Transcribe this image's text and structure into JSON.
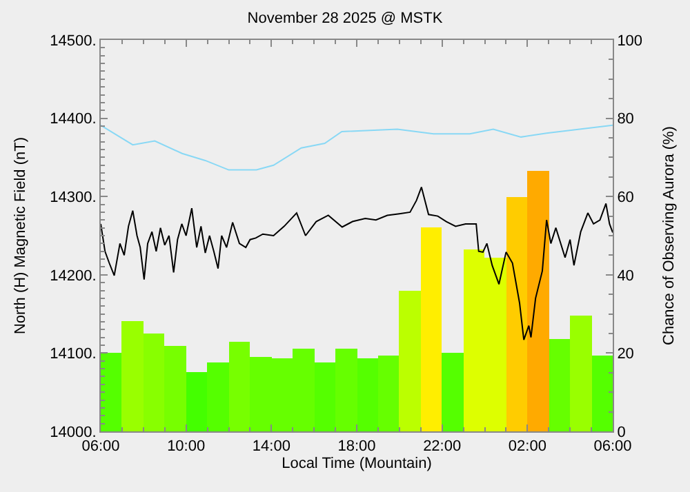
{
  "chart_data": {
    "type": "line",
    "title": "November 28 2025 @ MSTK",
    "xlabel": "Local Time (Mountain)",
    "ylabel": "North (H) Magnetic Field (nT)",
    "y2label": "Chance of Observing Aurora (%)",
    "xlim": [
      "2025-11-28T06:00",
      "2025-11-29T06:00"
    ],
    "xticks": [
      {
        "value": "2025-11-28T06:00",
        "label": "06:00"
      },
      {
        "value": "2025-11-28T10:00",
        "label": "10:00"
      },
      {
        "value": "2025-11-28T14:00",
        "label": "14:00"
      },
      {
        "value": "2025-11-28T18:00",
        "label": "18:00"
      },
      {
        "value": "2025-11-28T22:00",
        "label": "22:00"
      },
      {
        "value": "2025-11-29T02:00",
        "label": "02:00"
      },
      {
        "value": "2025-11-29T06:00",
        "label": "06:00"
      }
    ],
    "ylim": [
      14000,
      14500
    ],
    "yticks": [
      {
        "value": 14000,
        "label": "14000."
      },
      {
        "value": 14100,
        "label": "14100."
      },
      {
        "value": 14200,
        "label": "14200."
      },
      {
        "value": 14300,
        "label": "14300."
      },
      {
        "value": 14400,
        "label": "14400."
      },
      {
        "value": 14500,
        "label": "14500."
      }
    ],
    "y2lim": [
      0,
      100
    ],
    "y2ticks": [
      0,
      20,
      40,
      60,
      80,
      100
    ],
    "grid": false,
    "series": [
      {
        "type": "bar",
        "axis": "y2",
        "x": [
          "2025-11-28T06:30",
          "2025-11-28T07:30",
          "2025-11-28T08:30",
          "2025-11-28T09:30",
          "2025-11-28T10:30",
          "2025-11-28T11:30",
          "2025-11-28T12:30",
          "2025-11-28T13:30",
          "2025-11-28T14:30",
          "2025-11-28T15:30",
          "2025-11-28T16:30",
          "2025-11-28T17:30",
          "2025-11-28T18:30",
          "2025-11-28T19:30",
          "2025-11-28T20:30",
          "2025-11-28T21:30",
          "2025-11-28T22:30",
          "2025-11-28T23:30",
          "2025-11-29T00:30",
          "2025-11-29T01:30",
          "2025-11-29T02:30",
          "2025-11-29T03:30",
          "2025-11-29T04:30",
          "2025-11-29T05:30"
        ],
        "values": [
          20,
          28,
          25,
          22,
          15,
          17.5,
          23,
          19,
          18.5,
          21,
          17.5,
          21,
          18.5,
          19.5,
          36,
          52,
          20,
          46.5,
          44.5,
          60,
          66.5,
          23.5,
          29.5,
          19.5
        ],
        "colors": [
          "#55ff00",
          "#99ff00",
          "#88ff00",
          "#77ff00",
          "#44ff00",
          "#55ff00",
          "#77ff00",
          "#66ff00",
          "#66ff00",
          "#66ff00",
          "#55ff00",
          "#66ff00",
          "#55ff00",
          "#66ff00",
          "#bbff00",
          "#ffee00",
          "#55ff00",
          "#ddff00",
          "#ddff00",
          "#ffcc00",
          "#ffaa00",
          "#66ff00",
          "#99ff00",
          "#55ff00"
        ]
      },
      {
        "axis": "y",
        "color": "#88d8f5",
        "x": [
          "2025-11-28T06:00",
          "2025-11-28T07:30",
          "2025-11-28T08:32",
          "2025-11-28T09:49",
          "2025-11-28T10:54",
          "2025-11-28T12:00",
          "2025-11-28T13:18",
          "2025-11-28T14:06",
          "2025-11-28T15:24",
          "2025-11-28T16:30",
          "2025-11-28T17:18",
          "2025-11-28T19:54",
          "2025-11-28T21:36",
          "2025-11-28T23:18",
          "2025-11-29T00:24",
          "2025-11-29T01:42",
          "2025-11-29T02:54",
          "2025-11-29T06:00"
        ],
        "values": [
          14391,
          14366,
          14371,
          14355,
          14346,
          14334,
          14334,
          14340,
          14362,
          14368,
          14383,
          14386,
          14380,
          14380,
          14386,
          14376,
          14381,
          14391
        ]
      },
      {
        "axis": "y",
        "color": "#000000",
        "x": [
          "2025-11-28T06:00",
          "2025-11-28T06:12",
          "2025-11-28T06:24",
          "2025-11-28T06:38",
          "2025-11-28T06:54",
          "2025-11-28T07:06",
          "2025-11-28T07:18",
          "2025-11-28T07:30",
          "2025-11-28T07:42",
          "2025-11-28T07:51",
          "2025-11-28T08:02",
          "2025-11-28T08:12",
          "2025-11-28T08:24",
          "2025-11-28T08:36",
          "2025-11-28T08:48",
          "2025-11-28T09:00",
          "2025-11-28T09:12",
          "2025-11-28T09:25",
          "2025-11-28T09:36",
          "2025-11-28T09:48",
          "2025-11-28T10:00",
          "2025-11-28T10:16",
          "2025-11-28T10:30",
          "2025-11-28T10:42",
          "2025-11-28T10:54",
          "2025-11-28T11:06",
          "2025-11-28T11:18",
          "2025-11-28T11:30",
          "2025-11-28T11:40",
          "2025-11-28T11:54",
          "2025-11-28T12:11",
          "2025-11-28T12:30",
          "2025-11-28T12:48",
          "2025-11-28T13:00",
          "2025-11-28T13:16",
          "2025-11-28T13:36",
          "2025-11-28T14:06",
          "2025-11-28T14:36",
          "2025-11-28T15:11",
          "2025-11-28T15:36",
          "2025-11-28T16:06",
          "2025-11-28T16:40",
          "2025-11-28T17:19",
          "2025-11-28T17:48",
          "2025-11-28T18:24",
          "2025-11-28T18:54",
          "2025-11-28T19:26",
          "2025-11-28T20:00",
          "2025-11-28T20:30",
          "2025-11-28T20:48",
          "2025-11-28T21:02",
          "2025-11-28T21:22",
          "2025-11-28T21:48",
          "2025-11-28T22:12",
          "2025-11-28T22:38",
          "2025-11-28T23:06",
          "2025-11-28T23:36",
          "2025-11-28T23:43",
          "2025-11-28T23:55",
          "2025-11-29T00:06",
          "2025-11-29T00:21",
          "2025-11-29T00:40",
          "2025-11-29T01:00",
          "2025-11-29T01:18",
          "2025-11-29T01:38",
          "2025-11-29T01:50",
          "2025-11-29T02:04",
          "2025-11-29T02:10",
          "2025-11-29T02:23",
          "2025-11-29T02:42",
          "2025-11-29T02:54",
          "2025-11-29T03:06",
          "2025-11-29T03:20",
          "2025-11-29T03:46",
          "2025-11-29T04:00",
          "2025-11-29T04:11",
          "2025-11-29T04:30",
          "2025-11-29T04:50",
          "2025-11-29T05:06",
          "2025-11-29T05:24",
          "2025-11-29T05:41",
          "2025-11-29T05:51",
          "2025-11-29T06:00"
        ],
        "values": [
          14265,
          14230,
          14215,
          14199,
          14240,
          14225,
          14262,
          14282,
          14250,
          14235,
          14194,
          14240,
          14255,
          14230,
          14260,
          14238,
          14250,
          14203,
          14245,
          14265,
          14250,
          14285,
          14235,
          14262,
          14228,
          14250,
          14230,
          14208,
          14250,
          14235,
          14267,
          14240,
          14235,
          14245,
          14247,
          14252,
          14250,
          14262,
          14279,
          14250,
          14268,
          14276,
          14261,
          14268,
          14272,
          14270,
          14276,
          14278,
          14280,
          14295,
          14312,
          14277,
          14275,
          14268,
          14262,
          14265,
          14265,
          14230,
          14229,
          14240,
          14212,
          14188,
          14229,
          14215,
          14164,
          14117,
          14135,
          14120,
          14170,
          14205,
          14270,
          14240,
          14260,
          14222,
          14245,
          14212,
          14255,
          14279,
          14265,
          14270,
          14291,
          14265,
          14254
        ]
      }
    ]
  }
}
